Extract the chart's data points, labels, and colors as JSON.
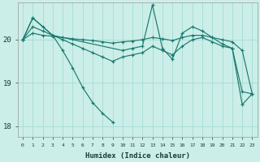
{
  "xlabel": "Humidex (Indice chaleur)",
  "bg_color": "#cceee8",
  "line_color": "#1a7a6e",
  "grid_color": "#aaddd8",
  "xlim": [
    -0.5,
    23.5
  ],
  "ylim": [
    17.75,
    20.85
  ],
  "yticks": [
    18,
    19,
    20
  ],
  "xtick_labels": [
    "0",
    "1",
    "2",
    "3",
    "4",
    "5",
    "6",
    "7",
    "8",
    "9",
    "10",
    "11",
    "12",
    "13",
    "14",
    "15",
    "16",
    "17",
    "18",
    "19",
    "20",
    "21",
    "22",
    "23"
  ],
  "xtick_positions": [
    0,
    1,
    2,
    3,
    4,
    5,
    6,
    7,
    8,
    9,
    10,
    11,
    12,
    13,
    14,
    15,
    16,
    17,
    18,
    19,
    20,
    21,
    22,
    23
  ],
  "series": [
    {
      "x": [
        0,
        1,
        3,
        4,
        5,
        6,
        7,
        8,
        9
      ],
      "y": [
        20.0,
        20.5,
        20.1,
        19.75,
        19.35,
        18.9,
        18.55,
        18.3,
        18.1
      ]
    },
    {
      "x": [
        0,
        1,
        2,
        3,
        10,
        11,
        12,
        13,
        14,
        15,
        16,
        17,
        18,
        19,
        20,
        21,
        22,
        23
      ],
      "y": [
        20.0,
        20.5,
        20.3,
        20.1,
        19.75,
        19.8,
        19.85,
        20.8,
        19.8,
        19.55,
        20.15,
        20.3,
        20.2,
        20.05,
        19.9,
        19.8,
        18.5,
        18.75
      ]
    },
    {
      "x": [
        0,
        1,
        2,
        3,
        4,
        5,
        6,
        7,
        8,
        9,
        10,
        11,
        12,
        13,
        14,
        15,
        16,
        17,
        18,
        19,
        20,
        21,
        22,
        23
      ],
      "y": [
        20.0,
        20.3,
        20.2,
        20.1,
        20.0,
        19.9,
        19.8,
        19.7,
        19.6,
        19.5,
        19.6,
        19.65,
        19.7,
        19.85,
        19.75,
        19.65,
        19.85,
        20.0,
        20.05,
        19.95,
        19.85,
        19.8,
        18.8,
        18.75
      ]
    },
    {
      "x": [
        0,
        1,
        2,
        3,
        4,
        5,
        6,
        7,
        8,
        9,
        10,
        11,
        12,
        13,
        14,
        15,
        16,
        17,
        18,
        19,
        20,
        21,
        22,
        23
      ],
      "y": [
        20.0,
        20.15,
        20.1,
        20.08,
        20.05,
        20.02,
        20.0,
        19.98,
        19.95,
        19.92,
        19.95,
        19.97,
        20.0,
        20.05,
        20.02,
        19.98,
        20.05,
        20.1,
        20.1,
        20.05,
        20.0,
        19.95,
        19.75,
        18.75
      ]
    }
  ]
}
